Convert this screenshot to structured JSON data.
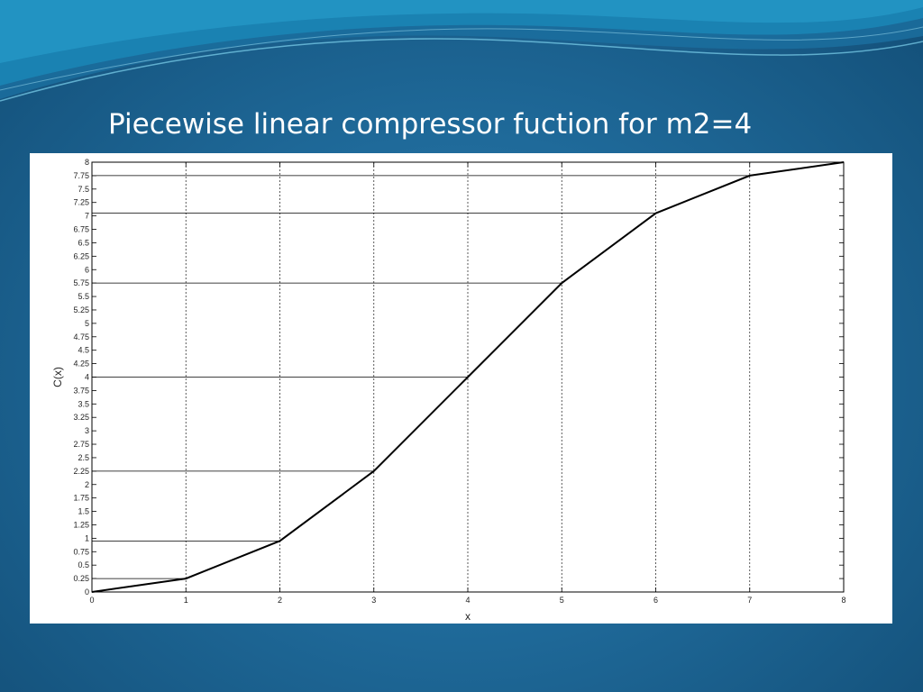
{
  "slide": {
    "title": "Piecewise linear compressor fuction for m2=4"
  },
  "colors": {
    "background": "#1f6a9a",
    "title_text": "#ffffff",
    "plot_background": "#ffffff",
    "line": "#000000"
  },
  "chart_data": {
    "type": "line",
    "title": "",
    "xlabel": "x",
    "ylabel": "C(x)",
    "xlim": [
      0,
      8
    ],
    "ylim": [
      0,
      8
    ],
    "x_ticks": [
      "0",
      "1",
      "2",
      "3",
      "4",
      "5",
      "6",
      "7",
      "8"
    ],
    "y_ticks": [
      "0",
      "0.25",
      "0.5",
      "0.75",
      "1",
      "1.25",
      "1.5",
      "1.75",
      "2",
      "2.25",
      "2.5",
      "2.75",
      "3",
      "3.25",
      "3.5",
      "3.75",
      "4",
      "4.25",
      "4.5",
      "4.75",
      "5",
      "5.25",
      "5.5",
      "5.75",
      "6",
      "6.25",
      "6.5",
      "6.75",
      "7",
      "7.25",
      "7.5",
      "7.75",
      "8"
    ],
    "vertical_grid": "dotted at each x tick",
    "horizontal_reference_lines": [
      0.25,
      0.95,
      2.25,
      4,
      5.75,
      7.05,
      7.75
    ],
    "series": [
      {
        "x": [
          0,
          1,
          2,
          3,
          4,
          5,
          6,
          7,
          8
        ],
        "y": [
          0,
          0.25,
          0.95,
          2.25,
          4,
          5.75,
          7.05,
          7.75,
          8
        ]
      }
    ]
  }
}
